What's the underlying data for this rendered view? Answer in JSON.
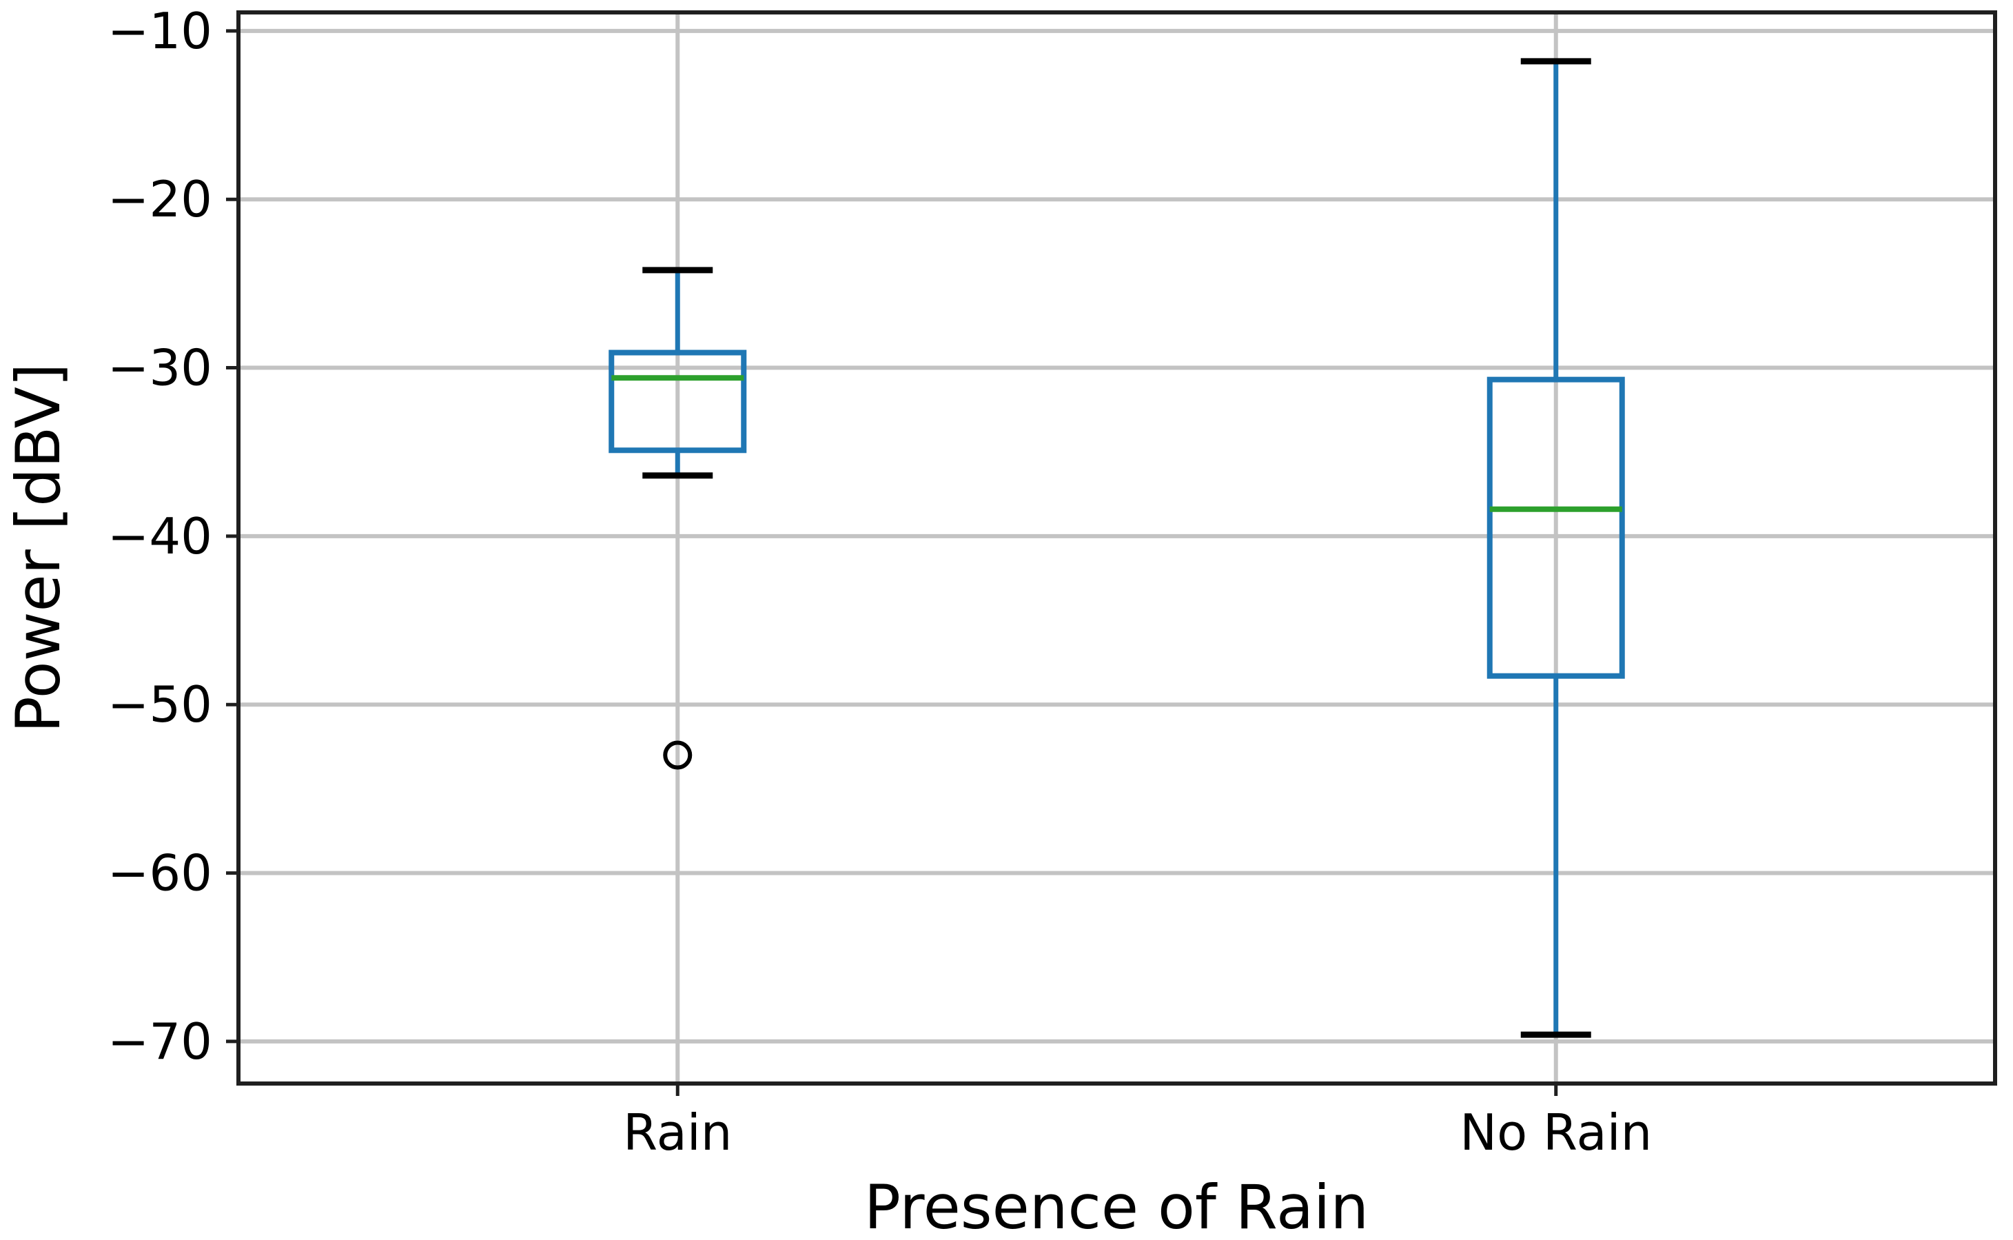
{
  "window": {
    "background": "#ffffff"
  },
  "chart_data": {
    "type": "boxplot",
    "title": "",
    "xlabel": "Presence of Rain",
    "ylabel": "Power [dBV]",
    "categories": [
      "Rain",
      "No Rain"
    ],
    "series": [
      {
        "name": "Rain",
        "whisker_low": -36.4,
        "q1": -34.9,
        "median": -30.6,
        "q3": -29.1,
        "whisker_high": -24.2,
        "outliers": [
          -53.0
        ]
      },
      {
        "name": "No Rain",
        "whisker_low": -69.6,
        "q1": -48.3,
        "median": -38.4,
        "q3": -30.7,
        "whisker_high": -11.8,
        "outliers": []
      }
    ],
    "ylim": [
      -72.5,
      -8.9
    ],
    "yticks": [
      -10,
      -20,
      -30,
      -40,
      -50,
      -60,
      -70
    ],
    "ytick_labels": [
      "−10",
      "−20",
      "−30",
      "−40",
      "−50",
      "−60",
      "−70"
    ],
    "grid": {
      "horizontal": true,
      "vertical": true
    },
    "legend": "none",
    "colors": {
      "box": "#1f77b4",
      "whisker": "#1f77b4",
      "median": "#2ca02c",
      "cap": "#000000",
      "outlier": "#000000",
      "grid": "#c3c3c3",
      "spine": "#1f1f1f",
      "text": "#000000"
    }
  }
}
